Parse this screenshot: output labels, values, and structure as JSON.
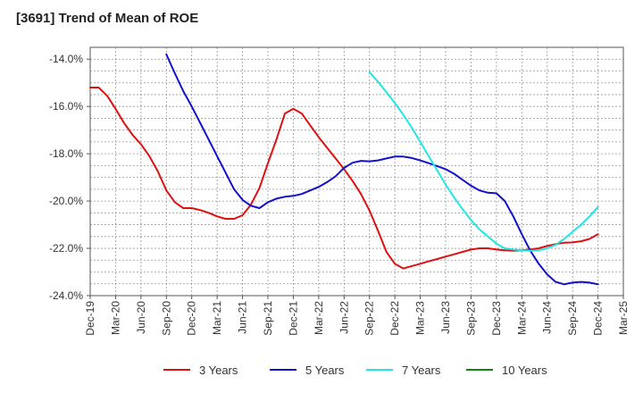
{
  "chart_data": {
    "type": "line",
    "title": "[3691]  Trend of Mean of ROE",
    "xlabel": "",
    "ylabel": "",
    "ylim": [
      -24.0,
      -13.5
    ],
    "grid": true,
    "legend_position": "bottom",
    "x_ticks": [
      "Dec-19",
      "Mar-20",
      "Jun-20",
      "Sep-20",
      "Dec-20",
      "Mar-21",
      "Jun-21",
      "Sep-21",
      "Dec-21",
      "Mar-22",
      "Jun-22",
      "Sep-22",
      "Dec-22",
      "Mar-23",
      "Jun-23",
      "Sep-23",
      "Dec-23",
      "Mar-24",
      "Jun-24",
      "Sep-24",
      "Dec-24",
      "Mar-25"
    ],
    "y_ticks": [
      "-14.0%",
      "-16.0%",
      "-18.0%",
      "-20.0%",
      "-22.0%",
      "-24.0%"
    ],
    "y_tick_values": [
      -14,
      -16,
      -18,
      -20,
      -22,
      -24
    ],
    "series": [
      {
        "name": "3 Years",
        "color": "#dd1111",
        "points": [
          [
            "Dec-19",
            -15.2
          ],
          [
            "Jan-20",
            -15.2
          ],
          [
            "Feb-20",
            -15.55
          ],
          [
            "Mar-20",
            -16.1
          ],
          [
            "Apr-20",
            -16.7
          ],
          [
            "May-20",
            -17.2
          ],
          [
            "Jun-20",
            -17.6
          ],
          [
            "Jul-20",
            -18.1
          ],
          [
            "Aug-20",
            -18.75
          ],
          [
            "Sep-20",
            -19.55
          ],
          [
            "Oct-20",
            -20.05
          ],
          [
            "Nov-20",
            -20.3
          ],
          [
            "Dec-20",
            -20.3
          ],
          [
            "Jan-21",
            -20.38
          ],
          [
            "Feb-21",
            -20.5
          ],
          [
            "Mar-21",
            -20.65
          ],
          [
            "Apr-21",
            -20.75
          ],
          [
            "May-21",
            -20.75
          ],
          [
            "Jun-21",
            -20.6
          ],
          [
            "Jul-21",
            -20.15
          ],
          [
            "Aug-21",
            -19.45
          ],
          [
            "Sep-21",
            -18.4
          ],
          [
            "Oct-21",
            -17.4
          ],
          [
            "Nov-21",
            -16.3
          ],
          [
            "Dec-21",
            -16.1
          ],
          [
            "Jan-22",
            -16.3
          ],
          [
            "Feb-22",
            -16.8
          ],
          [
            "Mar-22",
            -17.3
          ],
          [
            "Apr-22",
            -17.75
          ],
          [
            "May-22",
            -18.2
          ],
          [
            "Jun-22",
            -18.65
          ],
          [
            "Jul-22",
            -19.15
          ],
          [
            "Aug-22",
            -19.7
          ],
          [
            "Sep-22",
            -20.4
          ],
          [
            "Oct-22",
            -21.25
          ],
          [
            "Nov-22",
            -22.15
          ],
          [
            "Dec-22",
            -22.65
          ],
          [
            "Jan-23",
            -22.85
          ],
          [
            "Feb-23",
            -22.75
          ],
          [
            "Mar-23",
            -22.65
          ],
          [
            "Apr-23",
            -22.55
          ],
          [
            "May-23",
            -22.45
          ],
          [
            "Jun-23",
            -22.35
          ],
          [
            "Jul-23",
            -22.25
          ],
          [
            "Aug-23",
            -22.15
          ],
          [
            "Sep-23",
            -22.05
          ],
          [
            "Oct-23",
            -22.0
          ],
          [
            "Nov-23",
            -22.0
          ],
          [
            "Dec-23",
            -22.05
          ],
          [
            "Jan-24",
            -22.08
          ],
          [
            "Feb-24",
            -22.1
          ],
          [
            "Mar-24",
            -22.08
          ],
          [
            "Apr-24",
            -22.05
          ],
          [
            "May-24",
            -22.0
          ],
          [
            "Jun-24",
            -21.9
          ],
          [
            "Jul-24",
            -21.82
          ],
          [
            "Aug-24",
            -21.76
          ],
          [
            "Sep-24",
            -21.75
          ],
          [
            "Oct-24",
            -21.7
          ],
          [
            "Nov-24",
            -21.6
          ],
          [
            "Dec-24",
            -21.4
          ]
        ]
      },
      {
        "name": "5 Years",
        "color": "#1111cc",
        "points": [
          [
            "Sep-20",
            -13.8
          ],
          [
            "Oct-20",
            -14.6
          ],
          [
            "Nov-20",
            -15.35
          ],
          [
            "Dec-20",
            -16.0
          ],
          [
            "Jan-21",
            -16.7
          ],
          [
            "Feb-21",
            -17.4
          ],
          [
            "Mar-21",
            -18.1
          ],
          [
            "Apr-21",
            -18.8
          ],
          [
            "May-21",
            -19.5
          ],
          [
            "Jun-21",
            -19.95
          ],
          [
            "Jul-21",
            -20.2
          ],
          [
            "Aug-21",
            -20.3
          ],
          [
            "Sep-21",
            -20.05
          ],
          [
            "Oct-21",
            -19.9
          ],
          [
            "Nov-21",
            -19.82
          ],
          [
            "Dec-21",
            -19.78
          ],
          [
            "Jan-22",
            -19.7
          ],
          [
            "Feb-22",
            -19.55
          ],
          [
            "Mar-22",
            -19.4
          ],
          [
            "Apr-22",
            -19.2
          ],
          [
            "May-22",
            -18.95
          ],
          [
            "Jun-22",
            -18.6
          ],
          [
            "Jul-22",
            -18.38
          ],
          [
            "Aug-22",
            -18.3
          ],
          [
            "Sep-22",
            -18.32
          ],
          [
            "Oct-22",
            -18.28
          ],
          [
            "Nov-22",
            -18.2
          ],
          [
            "Dec-22",
            -18.12
          ],
          [
            "Jan-23",
            -18.12
          ],
          [
            "Feb-23",
            -18.18
          ],
          [
            "Mar-23",
            -18.28
          ],
          [
            "Apr-23",
            -18.4
          ],
          [
            "May-23",
            -18.52
          ],
          [
            "Jun-23",
            -18.65
          ],
          [
            "Jul-23",
            -18.85
          ],
          [
            "Aug-23",
            -19.1
          ],
          [
            "Sep-23",
            -19.35
          ],
          [
            "Oct-23",
            -19.55
          ],
          [
            "Nov-23",
            -19.65
          ],
          [
            "Dec-23",
            -19.67
          ],
          [
            "Jan-24",
            -20.0
          ],
          [
            "Feb-24",
            -20.65
          ],
          [
            "Mar-24",
            -21.4
          ],
          [
            "Apr-24",
            -22.1
          ],
          [
            "May-24",
            -22.65
          ],
          [
            "Jun-24",
            -23.1
          ],
          [
            "Jul-24",
            -23.42
          ],
          [
            "Aug-24",
            -23.52
          ],
          [
            "Sep-24",
            -23.45
          ],
          [
            "Oct-24",
            -23.42
          ],
          [
            "Nov-24",
            -23.45
          ],
          [
            "Dec-24",
            -23.52
          ]
        ]
      },
      {
        "name": "7 Years",
        "color": "#22e5e5",
        "points": [
          [
            "Sep-22",
            -14.55
          ],
          [
            "Oct-22",
            -14.95
          ],
          [
            "Nov-22",
            -15.4
          ],
          [
            "Dec-22",
            -15.85
          ],
          [
            "Jan-23",
            -16.35
          ],
          [
            "Feb-23",
            -16.9
          ],
          [
            "Mar-23",
            -17.5
          ],
          [
            "Apr-23",
            -18.1
          ],
          [
            "May-23",
            -18.7
          ],
          [
            "Jun-23",
            -19.3
          ],
          [
            "Jul-23",
            -19.85
          ],
          [
            "Aug-23",
            -20.35
          ],
          [
            "Sep-23",
            -20.8
          ],
          [
            "Oct-23",
            -21.2
          ],
          [
            "Nov-23",
            -21.5
          ],
          [
            "Dec-23",
            -21.8
          ],
          [
            "Jan-24",
            -22.0
          ],
          [
            "Feb-24",
            -22.05
          ],
          [
            "Mar-24",
            -22.08
          ],
          [
            "Apr-24",
            -22.1
          ],
          [
            "May-24",
            -22.08
          ],
          [
            "Jun-24",
            -22.0
          ],
          [
            "Jul-24",
            -21.85
          ],
          [
            "Aug-24",
            -21.6
          ],
          [
            "Sep-24",
            -21.3
          ],
          [
            "Oct-24",
            -21.0
          ],
          [
            "Nov-24",
            -20.65
          ],
          [
            "Dec-24",
            -20.25
          ]
        ]
      },
      {
        "name": "10 Years",
        "color": "#118811",
        "points": []
      }
    ]
  }
}
